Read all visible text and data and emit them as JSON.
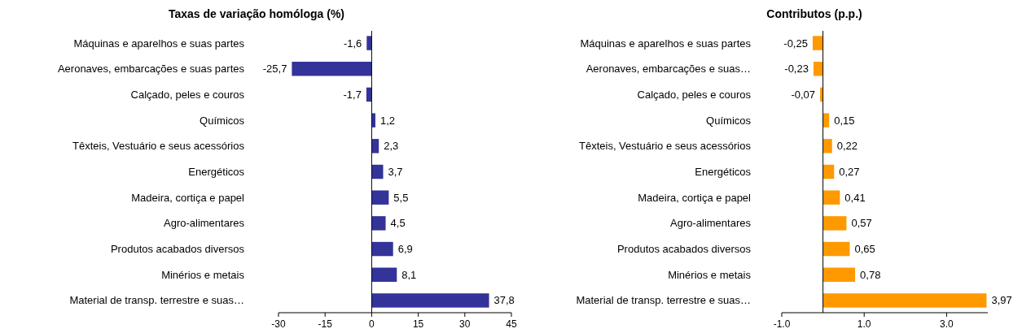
{
  "chart_data": [
    {
      "type": "bar",
      "orientation": "horizontal",
      "title": "Taxas de variação homóloga (%)",
      "categories": [
        "Máquinas e aparelhos e suas partes",
        "Aeronaves, embarcações e suas partes",
        "Calçado, peles e couros",
        "Químicos",
        "Têxteis, Vestuário e seus acessórios",
        "Energéticos",
        "Madeira, cortiça e papel",
        "Agro-alimentares",
        "Produtos acabados diversos",
        "Minérios e metais",
        "Material de transp. terrestre e suas…"
      ],
      "series": [
        {
          "color": "#333399",
          "values": [
            -1.6,
            -25.7,
            -1.7,
            1.2,
            2.3,
            3.7,
            5.5,
            4.5,
            6.9,
            8.1,
            37.8
          ],
          "value_labels": [
            "-1,6",
            "-25,7",
            "-1,7",
            "1,2",
            "2,3",
            "3,7",
            "5,5",
            "4,5",
            "6,9",
            "8,1",
            "37,8"
          ]
        }
      ],
      "xlim": [
        -30,
        45
      ],
      "xticks": [
        -30,
        -15,
        0,
        15,
        30,
        45
      ]
    },
    {
      "type": "bar",
      "orientation": "horizontal",
      "title": "Contributos (p.p.)",
      "categories": [
        "Máquinas e aparelhos e suas partes",
        "Aeronaves, embarcações e suas…",
        "Calçado, peles e couros",
        "Químicos",
        "Têxteis, Vestuário e seus acessórios",
        "Energéticos",
        "Madeira, cortiça e papel",
        "Agro-alimentares",
        "Produtos acabados diversos",
        "Minérios e metais",
        "Material de transp. terrestre e suas…"
      ],
      "series": [
        {
          "color": "#ff9900",
          "values": [
            -0.25,
            -0.23,
            -0.07,
            0.15,
            0.22,
            0.27,
            0.41,
            0.57,
            0.65,
            0.78,
            3.97
          ],
          "value_labels": [
            "-0,25",
            "-0,23",
            "-0,07",
            "0,15",
            "0,22",
            "0,27",
            "0,41",
            "0,57",
            "0,65",
            "0,78",
            "3,97"
          ]
        }
      ],
      "xlim": [
        -1,
        4
      ],
      "xticks": [
        {
          "value": -1,
          "label": "-1.0"
        },
        {
          "value": 1,
          "label": "1.0"
        },
        {
          "value": 3,
          "label": "3.0"
        }
      ]
    }
  ]
}
